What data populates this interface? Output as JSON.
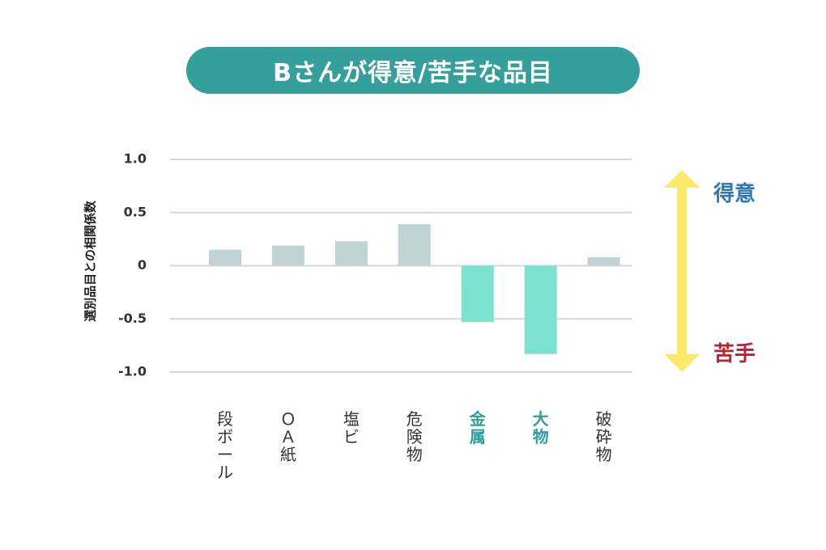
{
  "chart_data": {
    "type": "bar",
    "title": "Bさんが得意/苦手な品目",
    "ylabel": "選別品目との相関係数",
    "categories": [
      "段ボール",
      "ＯＡ紙",
      "塩ビ",
      "危険物",
      "金属",
      "大物",
      "破砕物"
    ],
    "highlighted": [
      "金属",
      "大物"
    ],
    "values": [
      0.15,
      0.19,
      0.23,
      0.39,
      -0.53,
      -0.83,
      0.08
    ],
    "ylim": [
      -1.0,
      1.0
    ],
    "yticks": [
      1.0,
      0.5,
      0,
      -0.5,
      -1.0
    ],
    "ytick_labels": [
      "1.0",
      "0.5",
      "0",
      "-0.5",
      "-1.0"
    ],
    "grid": true,
    "colors": {
      "positive": "#bfd3d5",
      "negative": "#7be2cf",
      "title_bg": "#35a09b",
      "arrow": "#fbe96a",
      "good": "#2f77b5",
      "bad": "#b52433",
      "highlight_label": "#2e9e97"
    },
    "annotations": {
      "good": "得意",
      "bad": "苦手"
    }
  }
}
